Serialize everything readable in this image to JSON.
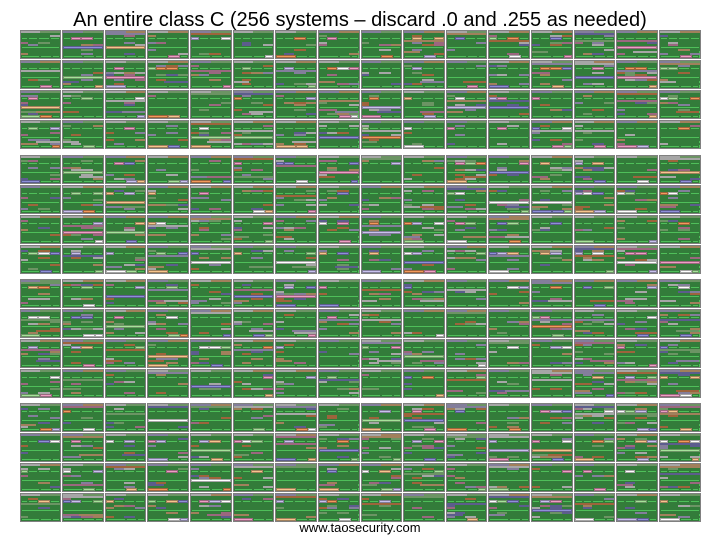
{
  "slide": {
    "title": "An entire class C (256 systems – discard .0 and .255 as needed)",
    "footer": "www.taosecurity.com"
  },
  "colors": {
    "background": "#ffffff",
    "card_border": "#808080",
    "green": "#4fbf5a",
    "light_green": "#a6e39a",
    "orange": "#f29a5c",
    "light_orange": "#f7c58e",
    "purple": "#8e8fd9",
    "lavender": "#c9c2ee",
    "pink": "#ee9fc4",
    "white": "#ffffff"
  },
  "systems": {
    "count": 256
  }
}
